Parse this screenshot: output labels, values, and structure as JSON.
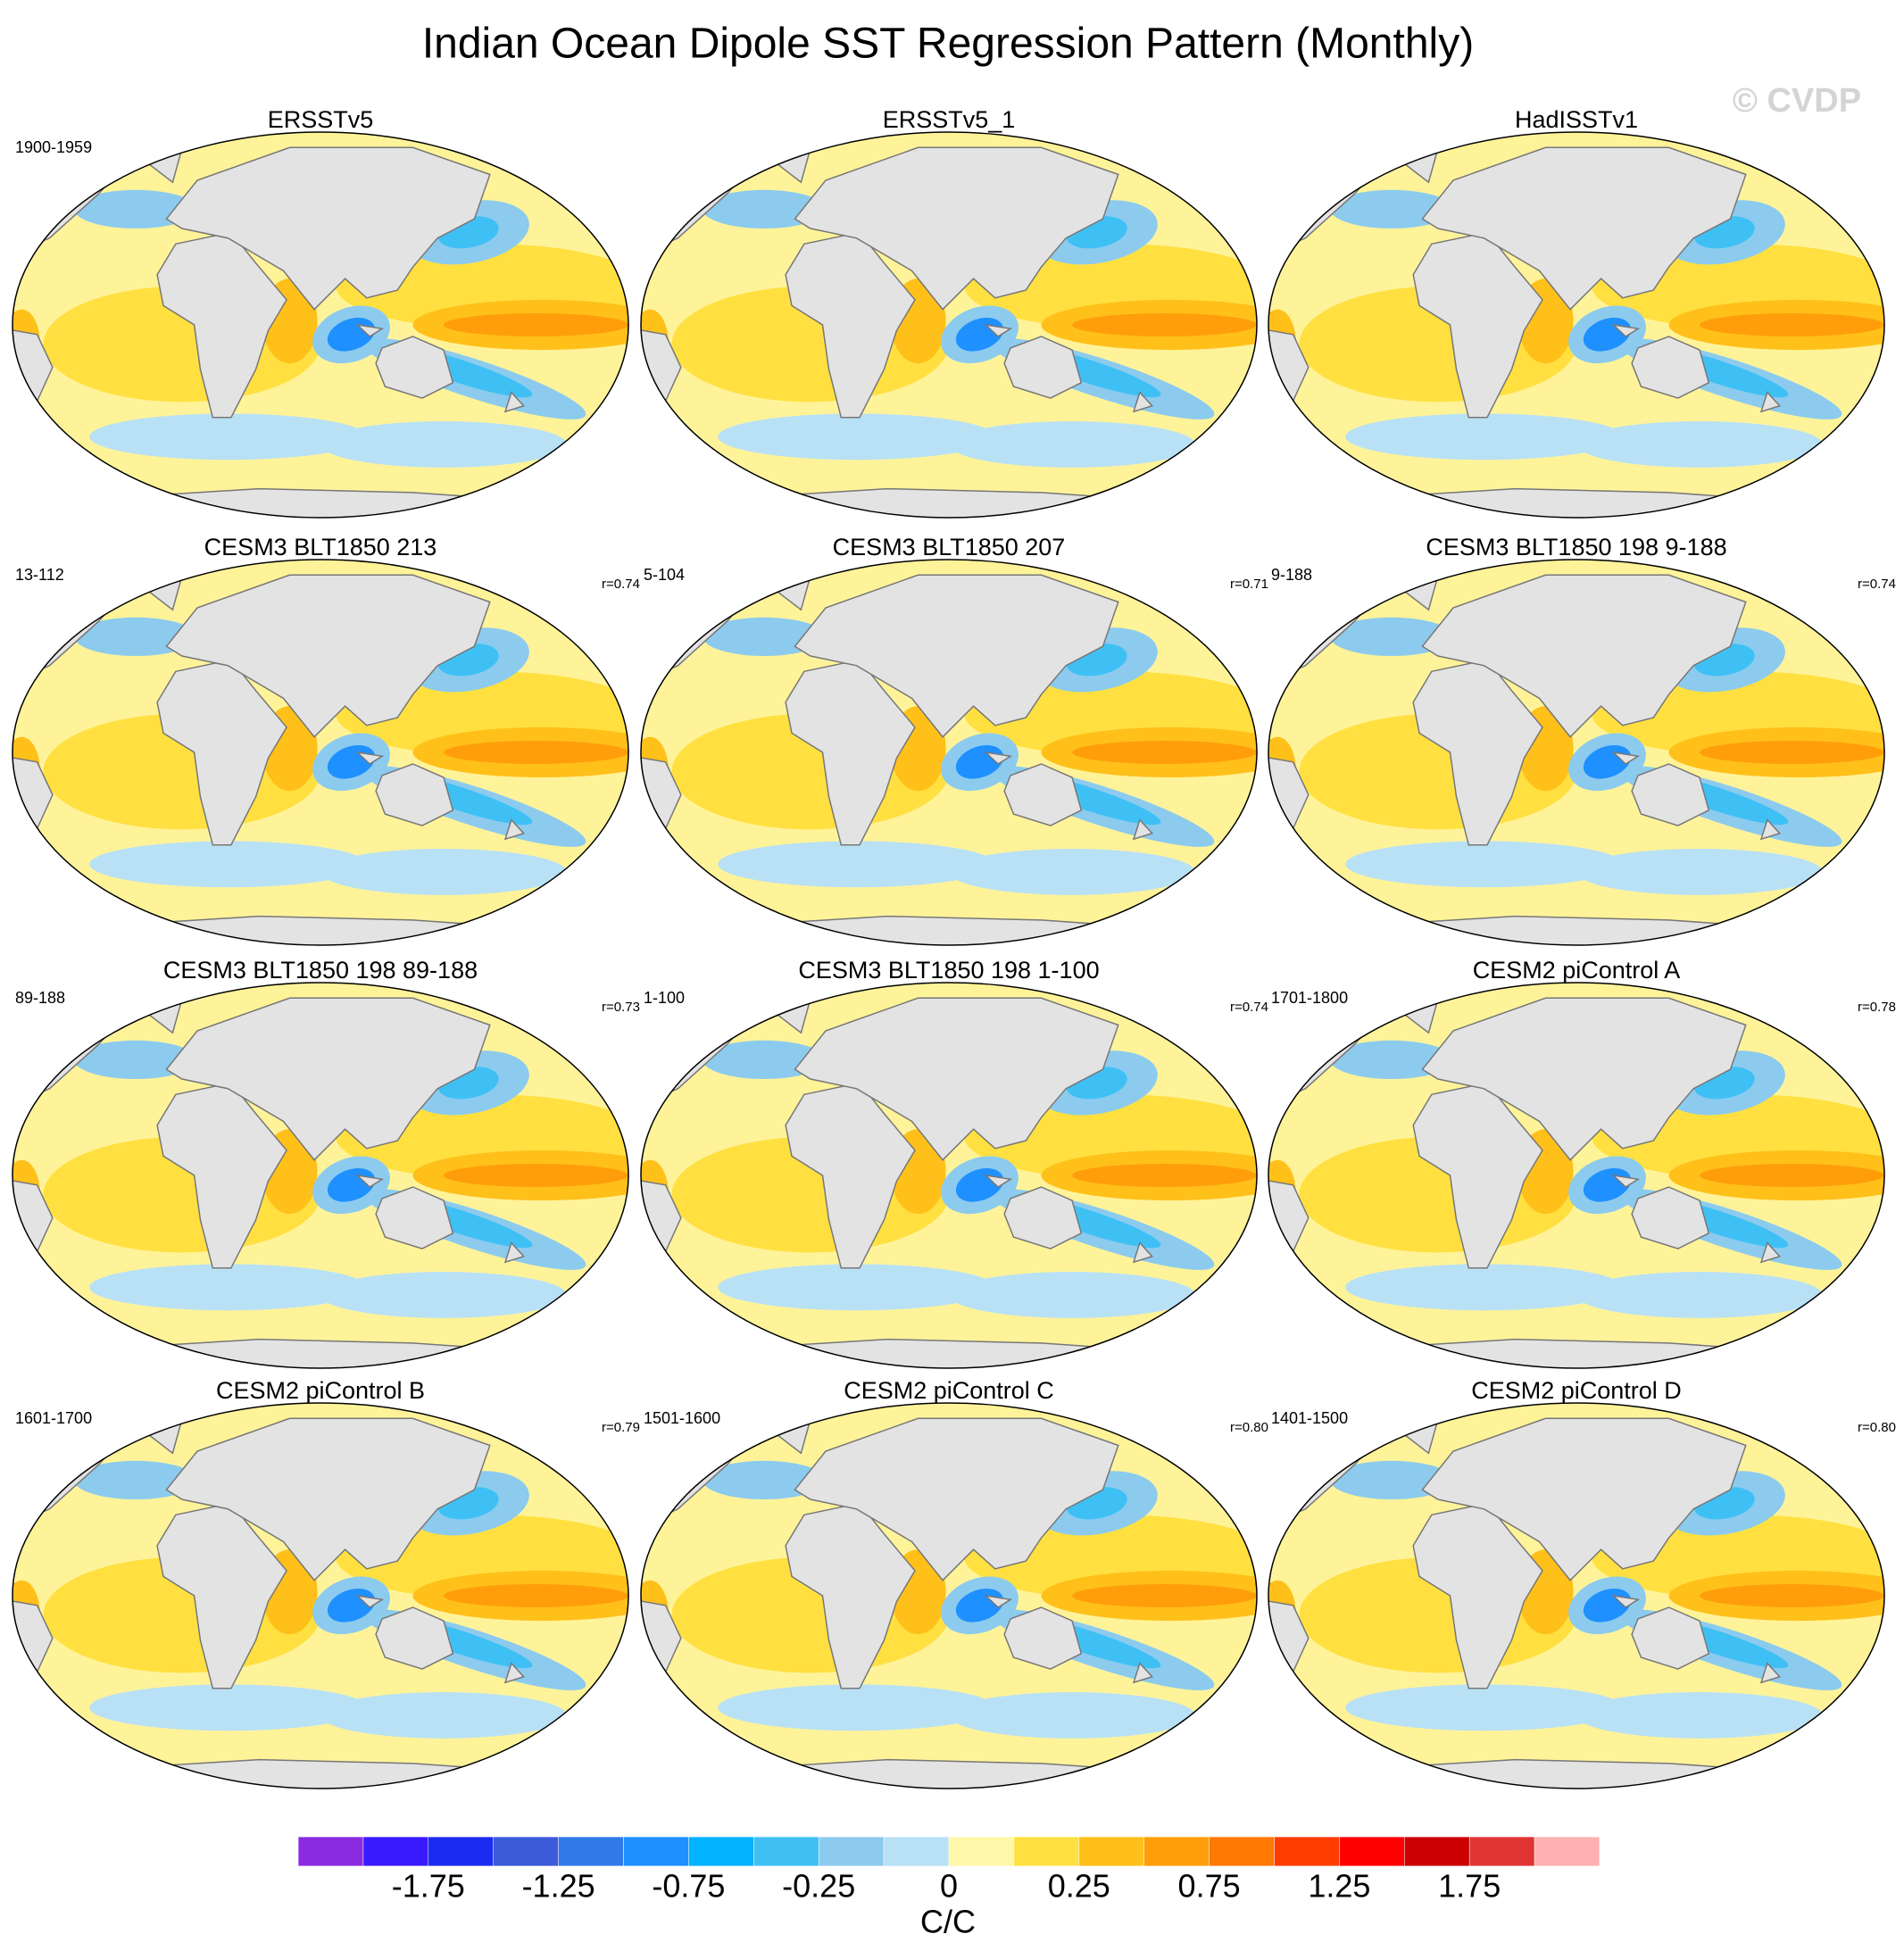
{
  "chart_data": {
    "type": "map",
    "title": "Indian Ocean Dipole SST Regression Pattern (Monthly)",
    "watermark": "© CVDP",
    "panels": [
      {
        "title": "ERSSTv5",
        "period": "1900-1959"
      },
      {
        "title": "ERSSTv5_1"
      },
      {
        "title": "HadISSTv1"
      },
      {
        "title": "CESM3 BLT1850 213",
        "period": "13-112",
        "r": "r=0.74"
      },
      {
        "title": "CESM3 BLT1850 207",
        "period": "5-104",
        "r": "r=0.71"
      },
      {
        "title": "CESM3 BLT1850 198 9-188",
        "period": "9-188",
        "r": "r=0.74"
      },
      {
        "title": "CESM3 BLT1850 198 89-188",
        "period": "89-188",
        "r": "r=0.73"
      },
      {
        "title": "CESM3 BLT1850 198 1-100",
        "period": "1-100",
        "r": "r=0.74"
      },
      {
        "title": "CESM2 piControl A",
        "period": "1701-1800",
        "r": "r=0.78"
      },
      {
        "title": "CESM2 piControl B",
        "period": "1601-1700",
        "r": "r=0.79"
      },
      {
        "title": "CESM2 piControl C",
        "period": "1501-1600",
        "r": "r=0.80"
      },
      {
        "title": "CESM2 piControl D",
        "period": "1401-1500",
        "r": "r=0.80"
      }
    ],
    "colorbar": {
      "colors": [
        "#8a2be2",
        "#3a1aff",
        "#1a2cf0",
        "#3b5bdb",
        "#2f7ae8",
        "#1e90ff",
        "#00b2ff",
        "#3fc0f5",
        "#8ccbee",
        "#b9e1f5",
        "#fff8a8",
        "#ffe040",
        "#ffc01a",
        "#ff9e0a",
        "#ff7800",
        "#ff3c00",
        "#ff0000",
        "#cc0000",
        "#e03434",
        "#ffb0b0"
      ],
      "ticks": [
        -1.75,
        -1.25,
        -0.75,
        -0.25,
        0,
        0.25,
        0.75,
        1.25,
        1.75
      ],
      "label": "C/C"
    }
  }
}
